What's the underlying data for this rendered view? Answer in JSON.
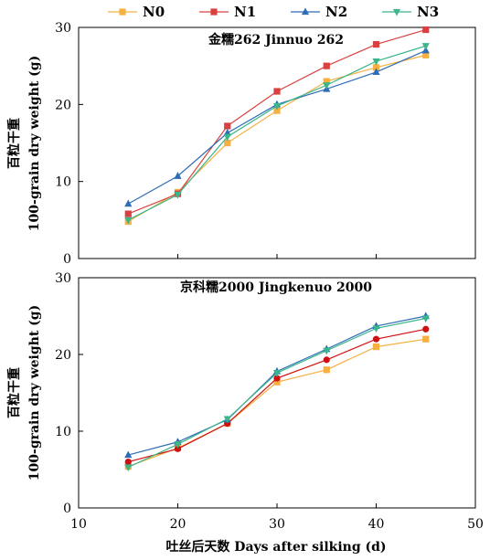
{
  "chart_data": [
    {
      "type": "line",
      "title": "金糯262 Jinnuo 262",
      "ylabel_cn": "百粒干重",
      "ylabel_en": "100-grain dry weight (g)",
      "xlabel": "",
      "x": [
        15,
        20,
        25,
        30,
        35,
        40,
        45
      ],
      "xlim": [
        10,
        50
      ],
      "ylim": [
        0,
        30
      ],
      "yticks": [
        0,
        10,
        20,
        30
      ],
      "series": [
        {
          "name": "N0",
          "color": "#F5B041",
          "marker": "square",
          "values": [
            4.8,
            8.6,
            15.0,
            19.2,
            23.0,
            24.8,
            26.4
          ]
        },
        {
          "name": "N1",
          "color": "#D94040",
          "marker": "square",
          "values": [
            5.8,
            8.4,
            17.2,
            21.7,
            25.0,
            27.8,
            29.7
          ]
        },
        {
          "name": "N2",
          "color": "#2E6CB5",
          "marker": "triangle-up",
          "values": [
            7.1,
            10.7,
            16.3,
            20.0,
            22.0,
            24.2,
            27.0
          ]
        },
        {
          "name": "N3",
          "color": "#3BB58A",
          "marker": "triangle-down",
          "values": [
            5.0,
            8.3,
            15.8,
            19.8,
            22.5,
            25.6,
            27.6
          ]
        }
      ]
    },
    {
      "type": "line",
      "title": "京科糯2000 Jingkenuo 2000",
      "ylabel_cn": "百粒干重",
      "ylabel_en": "100-grain dry weight (g)",
      "xlabel": "吐丝后天数 Days after silking (d)",
      "x": [
        15,
        20,
        25,
        30,
        35,
        40,
        45
      ],
      "xlim": [
        10,
        50
      ],
      "xticks": [
        10,
        20,
        30,
        40,
        50
      ],
      "ylim": [
        0,
        30
      ],
      "yticks": [
        0,
        10,
        20,
        30
      ],
      "series": [
        {
          "name": "N0",
          "color": "#F5B041",
          "marker": "square",
          "values": [
            5.4,
            7.8,
            11.0,
            16.4,
            18.0,
            21.0,
            22.0
          ]
        },
        {
          "name": "N1",
          "color": "#D01010",
          "marker": "circle",
          "values": [
            6.0,
            7.7,
            11.0,
            16.9,
            19.3,
            22.0,
            23.3
          ]
        },
        {
          "name": "N2",
          "color": "#2E6CB5",
          "marker": "triangle-up",
          "values": [
            6.9,
            8.6,
            11.5,
            17.8,
            20.7,
            23.7,
            25.0
          ]
        },
        {
          "name": "N3",
          "color": "#3BB58A",
          "marker": "triangle-down",
          "values": [
            5.3,
            8.3,
            11.6,
            17.6,
            20.5,
            23.4,
            24.7
          ]
        }
      ]
    }
  ]
}
